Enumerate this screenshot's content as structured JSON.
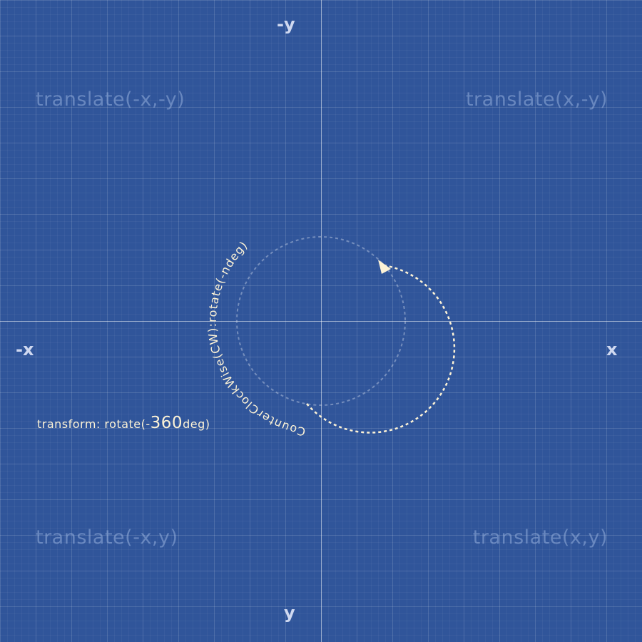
{
  "axes": {
    "neg_y": "-y",
    "pos_y": "y",
    "neg_x": "-x",
    "pos_x": "x"
  },
  "quadrants": {
    "top_left": "translate(-x,-y)",
    "top_right": "translate(x,-y)",
    "bottom_left": "translate(-x,y)",
    "bottom_right": "translate(x,y)"
  },
  "arc_label": "CounterClockWise(CW):rotate(-ndeg)",
  "transform": {
    "property": "transform:",
    "function": "rotate",
    "open": "(-",
    "value": "360",
    "unit": "deg",
    "close": ")"
  },
  "colors": {
    "background": "#30559a",
    "accent": "#fdf3d6"
  }
}
